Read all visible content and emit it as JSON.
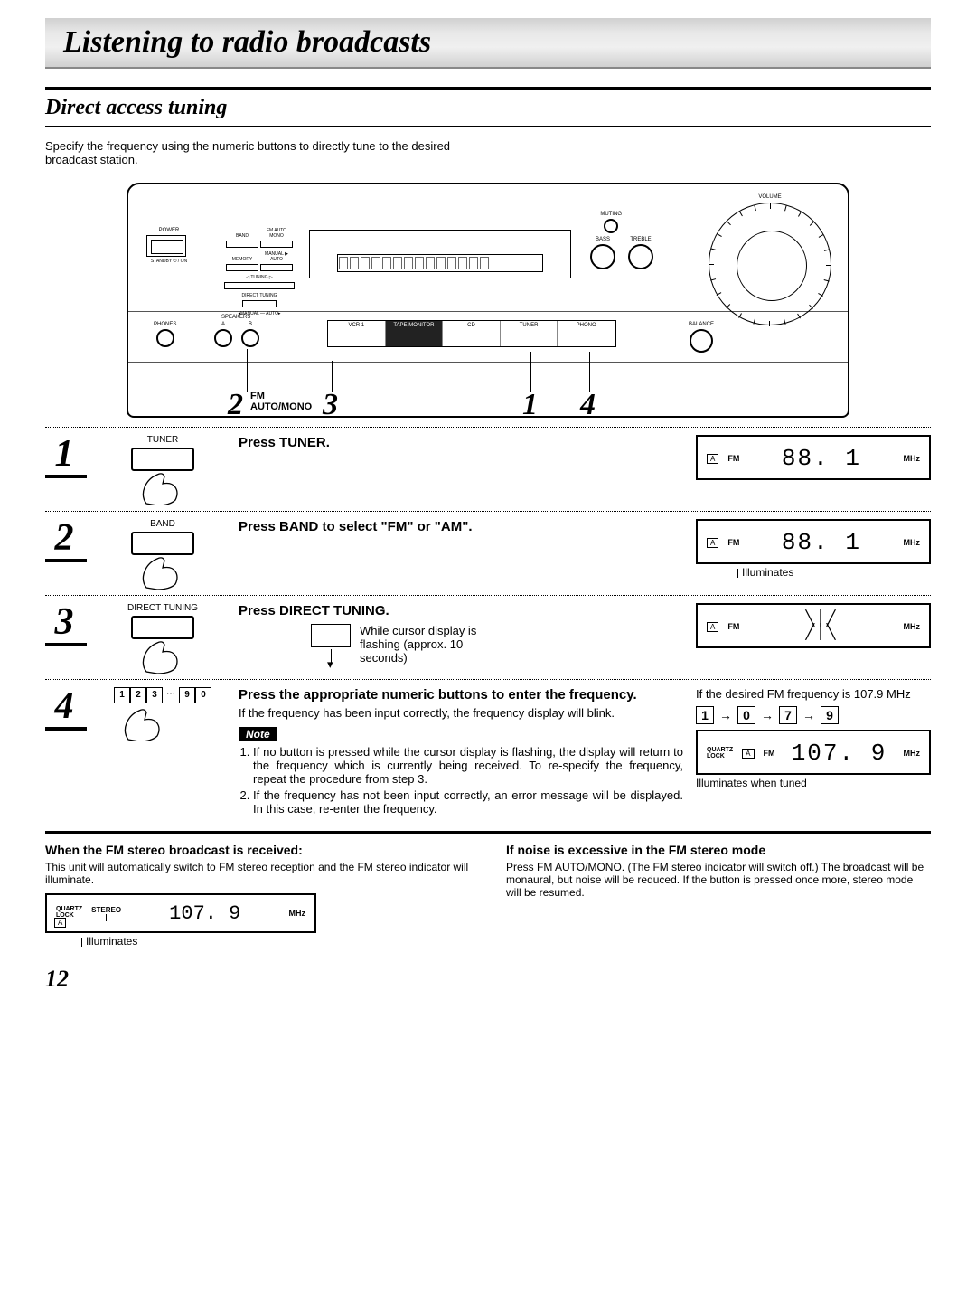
{
  "page_title": "Listening to radio broadcasts",
  "section_title": "Direct access tuning",
  "intro": "Specify the frequency using the numeric buttons to directly tune to the desired broadcast station.",
  "diagram": {
    "power": "POWER",
    "standby": "STANDBY ⏻ / ON",
    "band_label": "BAND",
    "fm_auto_mono": "FM AUTO MONO",
    "memory": "MEMORY",
    "manual_auto": "MANUAL ▶ AUTO",
    "tuning": "◁   TUNING   ▷",
    "direct_tuning": "DIRECT TUNING",
    "manual_auto2": "◂MANUAL — AUTO▸",
    "phones": "PHONES",
    "speakers": "SPEAKERS",
    "spk_a": "A",
    "spk_b": "B",
    "vcr1": "VCR 1",
    "tape": "TAPE MONITOR",
    "cd": "CD",
    "tuner": "TUNER",
    "phono": "PHONO",
    "balance": "BALANCE",
    "muting": "MUTING",
    "bass": "BASS",
    "treble": "TREBLE",
    "volume": "VOLUME",
    "fm_automono_callout": "FM\nAUTO/MONO",
    "callout1": "1",
    "callout2": "2",
    "callout3": "3",
    "callout4": "4"
  },
  "steps": [
    {
      "num": "1",
      "button_label": "TUNER",
      "heading": "Press TUNER.",
      "sub": "",
      "lcd": {
        "ql": "",
        "a": "A",
        "band": "FM",
        "digits": "88. 1",
        "unit": "MHz"
      },
      "caption": ""
    },
    {
      "num": "2",
      "button_label": "BAND",
      "heading": "Press BAND to select \"FM\" or \"AM\".",
      "sub": "",
      "lcd": {
        "ql": "",
        "a": "A",
        "band": "FM",
        "digits": "88. 1",
        "unit": "MHz"
      },
      "caption": "Illuminates"
    },
    {
      "num": "3",
      "button_label": "DIRECT TUNING",
      "heading": "Press DIRECT TUNING.",
      "sub": "While cursor display is flashing (approx. 10 seconds)",
      "lcd": {
        "ql": "",
        "a": "A",
        "band": "FM",
        "digits": "✳",
        "unit": "MHz"
      },
      "caption": ""
    },
    {
      "num": "4",
      "button_label": "",
      "heading": "Press the appropriate numeric buttons to enter the frequency.",
      "sub": "If the frequency has been input correctly, the frequency display will blink.",
      "keypad": [
        "1",
        "2",
        "3",
        "…",
        "9",
        "0"
      ],
      "note_label": "Note",
      "notes": [
        "If no button is pressed while the cursor display is flashing, the display will return to the frequency which is currently being received. To re-specify the frequency, repeat the procedure from step 3.",
        "If the frequency has not been input correctly, an error message will be displayed. In this case, re-enter the frequency."
      ],
      "right_text": "If the desired FM frequency is 107.9 MHz",
      "keyseq": [
        "1",
        "0",
        "7",
        "9"
      ],
      "lcd": {
        "ql": "QUARTZ\nLOCK",
        "a": "A",
        "band": "FM",
        "digits": "107. 9",
        "unit": "MHz"
      },
      "caption": "Illuminates when tuned"
    }
  ],
  "bottom_left": {
    "title": "When the FM stereo broadcast is received:",
    "text": "This unit will automatically switch to FM stereo reception and the FM stereo indicator will illuminate.",
    "lcd": {
      "ql": "QUARTZ\nLOCK",
      "stereo": "STEREO",
      "a": "A",
      "digits": "107. 9",
      "unit": "MHz"
    },
    "caption": "Illuminates"
  },
  "bottom_right": {
    "title": "If noise is excessive in the FM stereo mode",
    "text": "Press FM AUTO/MONO. (The FM stereo indicator will switch off.) The broadcast will be monaural, but noise will be reduced. If the button is pressed once more, stereo mode will be resumed."
  },
  "page_number": "12"
}
